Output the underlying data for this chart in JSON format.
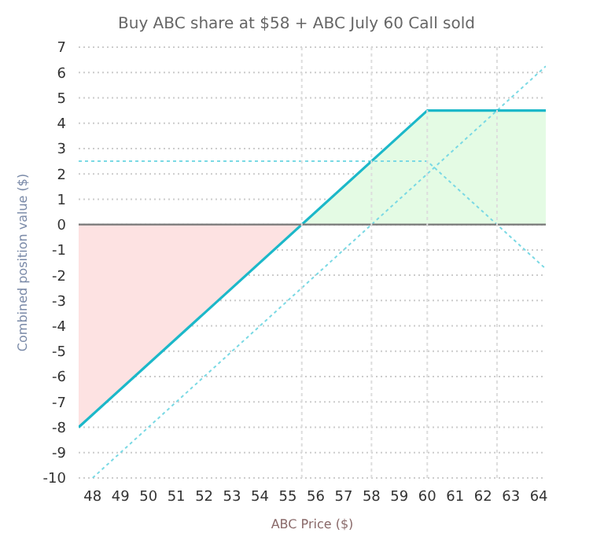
{
  "chart_data": {
    "type": "line",
    "title": "Buy ABC share at $58 + ABC July 60 Call sold",
    "xlabel": "ABC Price ($)",
    "ylabel": "Combined position value ($)",
    "xlim": [
      47.5,
      64.25
    ],
    "xticks": [
      48,
      49,
      50,
      51,
      52,
      53,
      54,
      55,
      56,
      57,
      58,
      59,
      60,
      61,
      62,
      63,
      64
    ],
    "ylim": [
      -10,
      7
    ],
    "yticks": [
      -10,
      -9,
      -8,
      -7,
      -6,
      -5,
      -4,
      -3,
      -2,
      -1,
      0,
      1,
      2,
      3,
      4,
      5,
      6,
      7
    ],
    "grid": "y",
    "marker": "none",
    "series": [
      {
        "type": "area",
        "color": "#fde2e2",
        "x": [
          47.5,
          55.5
        ],
        "values": [
          -8,
          0
        ]
      },
      {
        "type": "area",
        "color": "#e4fbe4",
        "x": [
          55.5,
          60,
          64.25
        ],
        "values": [
          0,
          4.5,
          4.5
        ]
      },
      {
        "color": "#7ad9e4",
        "line_style": "dotted",
        "x": [
          48,
          64.25
        ],
        "values": [
          -10,
          6.25
        ]
      },
      {
        "color": "#7ad9e4",
        "line_style": "dotted",
        "x": [
          47.5,
          60,
          64.25
        ],
        "values": [
          2.5,
          2.5,
          -1.75
        ]
      },
      {
        "color": "#1cb8c9",
        "line_style": "solid",
        "x": [
          47.5,
          60,
          64.25
        ],
        "values": [
          -8,
          4.5,
          4.5
        ]
      }
    ],
    "ref_lines": [
      {
        "axis": "y",
        "value": 0,
        "color": "#777777",
        "line_style": "solid"
      },
      {
        "axis": "x",
        "value": 55.5,
        "color": "#dddddd",
        "line_style": "dotted"
      },
      {
        "axis": "x",
        "value": 58,
        "color": "#dddddd",
        "line_style": "dotted"
      },
      {
        "axis": "x",
        "value": 60,
        "color": "#dddddd",
        "line_style": "dotted"
      },
      {
        "axis": "x",
        "value": 62.5,
        "color": "#dddddd",
        "line_style": "dotted"
      }
    ]
  }
}
